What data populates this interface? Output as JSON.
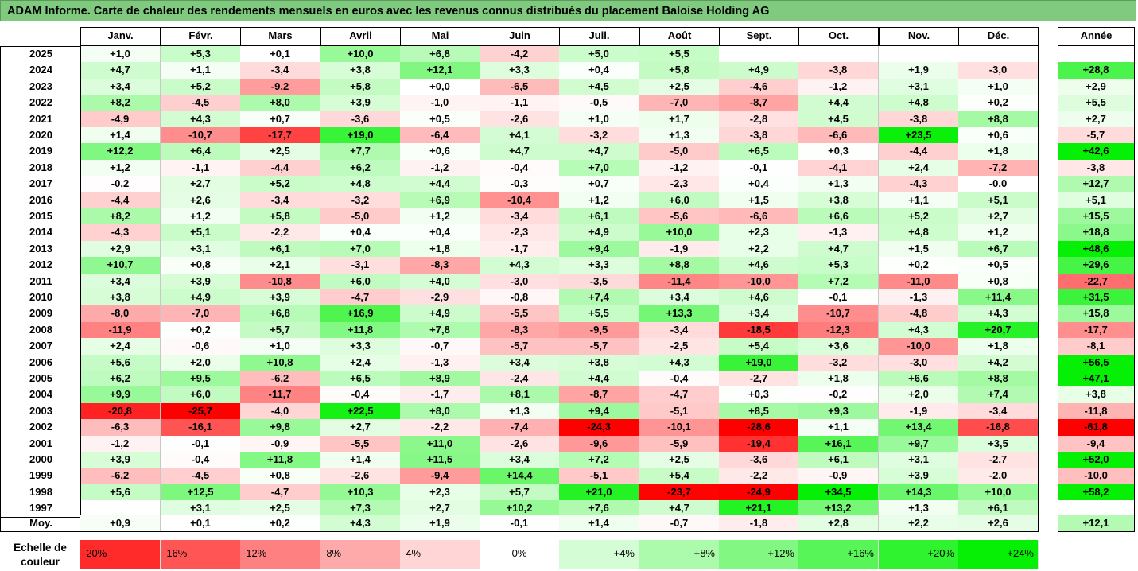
{
  "title": "ADAM Informe. Carte de chaleur des rendements mensuels en euros avec les revenus connus distribués du placement Baloise Holding AG",
  "chart_data": {
    "type": "heatmap",
    "months": [
      "Janv.",
      "Févr.",
      "Mars",
      "Avril",
      "Mai",
      "Juin",
      "Juil.",
      "Août",
      "Sept.",
      "Oct.",
      "Nov.",
      "Déc."
    ],
    "year_header": "Année",
    "avg_label": "Moy.",
    "rows": [
      {
        "year": "2025",
        "values": [
          "+1,0",
          "+5,3",
          "+0,1",
          "+10,0",
          "+6,8",
          "-4,2",
          "+5,0",
          "+5,5",
          "",
          "",
          "",
          ""
        ],
        "annual": ""
      },
      {
        "year": "2024",
        "values": [
          "+4,7",
          "+1,1",
          "-3,4",
          "+3,8",
          "+12,1",
          "+3,3",
          "+0,4",
          "+5,8",
          "+4,9",
          "-3,8",
          "+1,9",
          "-3,0"
        ],
        "annual": "+28,8"
      },
      {
        "year": "2023",
        "values": [
          "+3,4",
          "+5,2",
          "-9,2",
          "+5,8",
          "+0,0",
          "-6,5",
          "+4,5",
          "+2,5",
          "-4,6",
          "-1,2",
          "+3,1",
          "+1,0"
        ],
        "annual": "+2,9"
      },
      {
        "year": "2022",
        "values": [
          "+8,2",
          "-4,5",
          "+8,0",
          "+3,9",
          "-1,0",
          "-1,1",
          "-0,5",
          "-7,0",
          "-8,7",
          "+4,4",
          "+4,8",
          "+0,2"
        ],
        "annual": "+5,5"
      },
      {
        "year": "2021",
        "values": [
          "-4,9",
          "+4,3",
          "+0,7",
          "-3,6",
          "+0,5",
          "-2,6",
          "+1,0",
          "+1,7",
          "-2,8",
          "+4,5",
          "-3,8",
          "+8,8"
        ],
        "annual": "+2,7"
      },
      {
        "year": "2020",
        "values": [
          "+1,4",
          "-10,7",
          "-17,7",
          "+19,0",
          "-6,4",
          "+4,1",
          "-3,2",
          "+1,3",
          "-3,8",
          "-6,6",
          "+23,5",
          "+0,6"
        ],
        "annual": "-5,7"
      },
      {
        "year": "2019",
        "values": [
          "+12,2",
          "+6,4",
          "+2,5",
          "+7,7",
          "+0,6",
          "+4,7",
          "+4,7",
          "-5,0",
          "+6,5",
          "+0,3",
          "-4,4",
          "+1,8"
        ],
        "annual": "+42,6"
      },
      {
        "year": "2018",
        "values": [
          "+1,2",
          "-1,1",
          "-4,4",
          "+6,2",
          "-1,2",
          "-0,4",
          "+7,0",
          "-1,2",
          "-0,1",
          "-4,1",
          "+2,4",
          "-7,2"
        ],
        "annual": "-3,8"
      },
      {
        "year": "2017",
        "values": [
          "-0,2",
          "+2,7",
          "+5,2",
          "+4,8",
          "+4,4",
          "-0,3",
          "+0,7",
          "-2,3",
          "+0,4",
          "+1,3",
          "-4,3",
          "-0,0"
        ],
        "annual": "+12,7"
      },
      {
        "year": "2016",
        "values": [
          "-4,4",
          "+2,6",
          "-3,4",
          "-3,2",
          "+6,9",
          "-10,4",
          "+1,2",
          "+6,0",
          "+1,5",
          "+3,8",
          "+1,1",
          "+5,1"
        ],
        "annual": "+5,1"
      },
      {
        "year": "2015",
        "values": [
          "+8,2",
          "+1,2",
          "+5,8",
          "-5,0",
          "+1,2",
          "-3,4",
          "+6,1",
          "-5,6",
          "-6,6",
          "+6,6",
          "+5,2",
          "+2,7"
        ],
        "annual": "+15,5"
      },
      {
        "year": "2014",
        "values": [
          "-4,3",
          "+5,1",
          "-2,2",
          "+0,4",
          "+0,4",
          "-2,3",
          "+4,9",
          "+10,0",
          "+2,3",
          "-1,3",
          "+4,8",
          "+1,2"
        ],
        "annual": "+18,8"
      },
      {
        "year": "2013",
        "values": [
          "+2,9",
          "+3,1",
          "+6,1",
          "+7,0",
          "+1,8",
          "-1,7",
          "+9,4",
          "-1,9",
          "+2,2",
          "+4,7",
          "+1,5",
          "+6,7"
        ],
        "annual": "+48,6"
      },
      {
        "year": "2012",
        "values": [
          "+10,7",
          "+0,8",
          "+2,1",
          "-3,1",
          "-8,3",
          "+4,3",
          "+3,3",
          "+8,8",
          "+4,6",
          "+5,3",
          "+0,2",
          "+0,5"
        ],
        "annual": "+29,6"
      },
      {
        "year": "2011",
        "values": [
          "+3,4",
          "+3,9",
          "-10,8",
          "+6,0",
          "+4,0",
          "-3,0",
          "-3,5",
          "-11,4",
          "-10,0",
          "+7,2",
          "-11,0",
          "+0,8"
        ],
        "annual": "-22,7"
      },
      {
        "year": "2010",
        "values": [
          "+3,8",
          "+4,9",
          "+3,9",
          "-4,7",
          "-2,9",
          "-0,8",
          "+7,4",
          "+3,4",
          "+4,6",
          "-0,1",
          "-1,3",
          "+11,4"
        ],
        "annual": "+31,5"
      },
      {
        "year": "2009",
        "values": [
          "-8,0",
          "-7,0",
          "+6,8",
          "+16,9",
          "+4,9",
          "-5,5",
          "+5,5",
          "+13,3",
          "+3,4",
          "-10,7",
          "-4,8",
          "+4,3"
        ],
        "annual": "+15,8"
      },
      {
        "year": "2008",
        "values": [
          "-11,9",
          "+0,2",
          "+5,7",
          "+11,8",
          "+7,8",
          "-8,3",
          "-9,5",
          "-3,4",
          "-18,5",
          "-12,3",
          "+4,3",
          "+20,7"
        ],
        "annual": "-17,7"
      },
      {
        "year": "2007",
        "values": [
          "+2,4",
          "-0,6",
          "+1,0",
          "+3,3",
          "-0,7",
          "-5,7",
          "-5,7",
          "-2,5",
          "+5,4",
          "+3,6",
          "-10,0",
          "+1,8"
        ],
        "annual": "-8,1"
      },
      {
        "year": "2006",
        "values": [
          "+5,6",
          "+2,0",
          "+10,8",
          "+2,4",
          "-1,3",
          "+3,4",
          "+3,8",
          "+4,3",
          "+19,0",
          "-3,2",
          "-3,0",
          "+4,2"
        ],
        "annual": "+56,5"
      },
      {
        "year": "2005",
        "values": [
          "+6,2",
          "+9,5",
          "-6,2",
          "+6,5",
          "+8,9",
          "-2,4",
          "+4,4",
          "-0,4",
          "-2,7",
          "+1,8",
          "+6,6",
          "+8,8"
        ],
        "annual": "+47,1"
      },
      {
        "year": "2004",
        "values": [
          "+9,9",
          "+6,0",
          "-11,7",
          "-0,4",
          "-1,7",
          "+8,1",
          "-8,7",
          "-4,7",
          "+0,3",
          "-0,2",
          "+2,0",
          "+7,4"
        ],
        "annual": "+3,8"
      },
      {
        "year": "2003",
        "values": [
          "-20,8",
          "-25,7",
          "-4,0",
          "+22,5",
          "+8,0",
          "+1,3",
          "+9,4",
          "-5,1",
          "+8,5",
          "+9,3",
          "-1,9",
          "-3,4"
        ],
        "annual": "-11,8"
      },
      {
        "year": "2002",
        "values": [
          "-6,3",
          "-16,1",
          "+9,8",
          "+2,7",
          "-2,2",
          "-7,4",
          "-24,3",
          "-10,1",
          "-28,6",
          "+1,1",
          "+13,4",
          "-16,8"
        ],
        "annual": "-61,8"
      },
      {
        "year": "2001",
        "values": [
          "-1,2",
          "-0,1",
          "-0,9",
          "-5,5",
          "+11,0",
          "-2,6",
          "-9,6",
          "-5,9",
          "-19,4",
          "+16,1",
          "+9,7",
          "+3,5"
        ],
        "annual": "-9,4"
      },
      {
        "year": "2000",
        "values": [
          "+3,9",
          "-0,4",
          "+11,8",
          "+1,4",
          "+11,5",
          "+3,4",
          "+7,2",
          "+2,5",
          "-3,6",
          "+6,1",
          "+3,1",
          "-2,7"
        ],
        "annual": "+52,0"
      },
      {
        "year": "1999",
        "values": [
          "-6,2",
          "-4,5",
          "+0,8",
          "-2,6",
          "-9,4",
          "+14,4",
          "-5,1",
          "+5,4",
          "-2,2",
          "-0,9",
          "+3,9",
          "-2,0"
        ],
        "annual": "-10,0"
      },
      {
        "year": "1998",
        "values": [
          "+5,6",
          "+12,5",
          "-4,7",
          "+10,3",
          "+2,3",
          "+5,7",
          "+21,0",
          "-23,7",
          "-24,9",
          "+34,5",
          "+14,3",
          "+10,0"
        ],
        "annual": "+58,2"
      },
      {
        "year": "1997",
        "values": [
          "",
          "+3,1",
          "+2,5",
          "+7,3",
          "+2,7",
          "+10,2",
          "+7,6",
          "+4,7",
          "+21,1",
          "+13,2",
          "+1,3",
          "+6,1"
        ],
        "annual": ""
      }
    ],
    "average": {
      "values": [
        "+0,9",
        "+0,1",
        "+0,2",
        "+4,3",
        "+1,9",
        "-0,1",
        "+1,4",
        "-0,7",
        "-1,8",
        "+2,8",
        "+2,2",
        "+2,6"
      ],
      "annual": "+12,1"
    },
    "scale": {
      "label_line1": "Echelle de",
      "label_line2": "couleur",
      "items": [
        "-20%",
        "-16%",
        "-12%",
        "-8%",
        "-4%",
        "0%",
        "+4%",
        "+8%",
        "+12%",
        "+16%",
        "+20%",
        "+24%"
      ]
    }
  }
}
